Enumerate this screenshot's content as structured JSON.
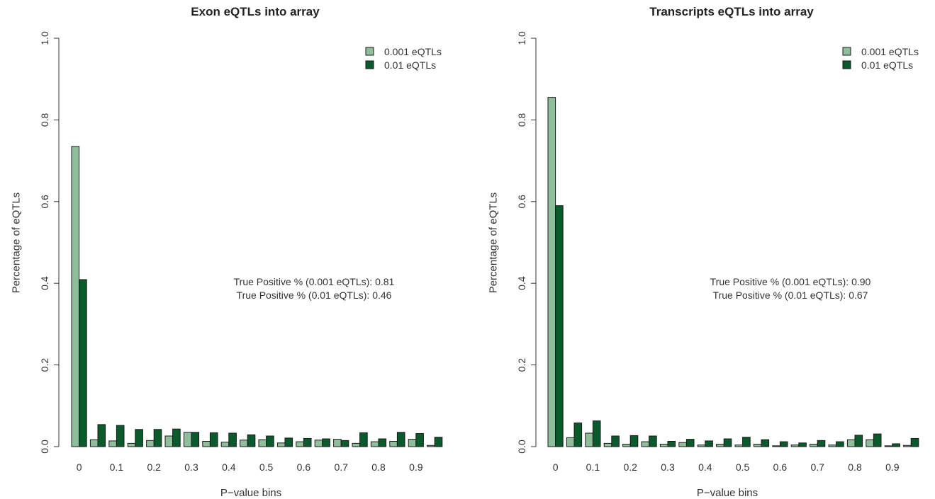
{
  "chart_data": [
    {
      "type": "bar",
      "title": "Exon eQTLs into array",
      "xlabel": "P−value bins",
      "ylabel": "Percentage of eQTLs",
      "ylim": [
        0,
        1.0
      ],
      "yticks": [
        "0.0",
        "0.2",
        "0.4",
        "0.6",
        "0.8",
        "1.0"
      ],
      "xticks": [
        "0",
        "0.1",
        "0.2",
        "0.3",
        "0.4",
        "0.5",
        "0.6",
        "0.7",
        "0.8",
        "0.9"
      ],
      "grid": false,
      "legend_position": "top-right",
      "categories": [
        0,
        0.05,
        0.1,
        0.15,
        0.2,
        0.25,
        0.3,
        0.35,
        0.4,
        0.45,
        0.5,
        0.55,
        0.6,
        0.65,
        0.7,
        0.75,
        0.8,
        0.85,
        0.9,
        0.95
      ],
      "series": [
        {
          "name": "0.001 eQTLs",
          "color": "#8fbf9a",
          "values": [
            0.735,
            0.017,
            0.014,
            0.008,
            0.015,
            0.026,
            0.035,
            0.013,
            0.011,
            0.016,
            0.017,
            0.009,
            0.012,
            0.016,
            0.018,
            0.008,
            0.012,
            0.013,
            0.018,
            0.003
          ]
        },
        {
          "name": "0.01 eQTLs",
          "color": "#0a5a2c",
          "values": [
            0.409,
            0.054,
            0.052,
            0.042,
            0.042,
            0.043,
            0.035,
            0.034,
            0.033,
            0.029,
            0.026,
            0.021,
            0.02,
            0.019,
            0.015,
            0.034,
            0.019,
            0.035,
            0.032,
            0.023
          ]
        }
      ],
      "annotations": [
        "True Positive % (0.001 eQTLs): 0.81",
        "True Positive % (0.01 eQTLs): 0.46"
      ]
    },
    {
      "type": "bar",
      "title": "Transcripts eQTLs into array",
      "xlabel": "P−value bins",
      "ylabel": "Percentage of eQTLs",
      "ylim": [
        0,
        1.0
      ],
      "yticks": [
        "0.0",
        "0.2",
        "0.4",
        "0.6",
        "0.8",
        "1.0"
      ],
      "xticks": [
        "0",
        "0.1",
        "0.2",
        "0.3",
        "0.4",
        "0.5",
        "0.6",
        "0.7",
        "0.8",
        "0.9"
      ],
      "grid": false,
      "legend_position": "top-right",
      "categories": [
        0,
        0.05,
        0.1,
        0.15,
        0.2,
        0.25,
        0.3,
        0.35,
        0.4,
        0.45,
        0.5,
        0.55,
        0.6,
        0.65,
        0.7,
        0.75,
        0.8,
        0.85,
        0.9,
        0.95
      ],
      "series": [
        {
          "name": "0.001 eQTLs",
          "color": "#8fbf9a",
          "values": [
            0.855,
            0.022,
            0.033,
            0.008,
            0.006,
            0.012,
            0.006,
            0.01,
            0.004,
            0.006,
            0.004,
            0.006,
            0.002,
            0.004,
            0.006,
            0.004,
            0.017,
            0.017,
            0.002,
            0.003
          ]
        },
        {
          "name": "0.01 eQTLs",
          "color": "#0a5a2c",
          "values": [
            0.59,
            0.058,
            0.063,
            0.026,
            0.027,
            0.026,
            0.013,
            0.018,
            0.014,
            0.019,
            0.023,
            0.017,
            0.012,
            0.009,
            0.015,
            0.012,
            0.028,
            0.031,
            0.007,
            0.02
          ]
        }
      ],
      "annotations": [
        "True Positive % (0.001 eQTLs): 0.90",
        "True Positive % (0.01 eQTLs): 0.67"
      ]
    }
  ]
}
